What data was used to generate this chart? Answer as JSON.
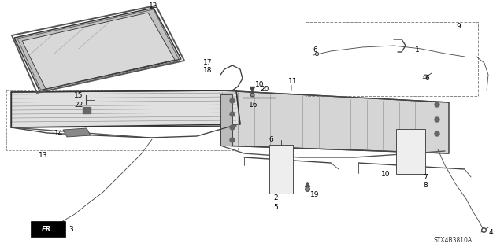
{
  "bg_color": "#ffffff",
  "diagram_code": "STX4B3810A",
  "line_color": "#333333",
  "text_color": "#000000",
  "label_fontsize": 6.5,
  "figsize": [
    6.4,
    3.19
  ],
  "dpi": 100
}
